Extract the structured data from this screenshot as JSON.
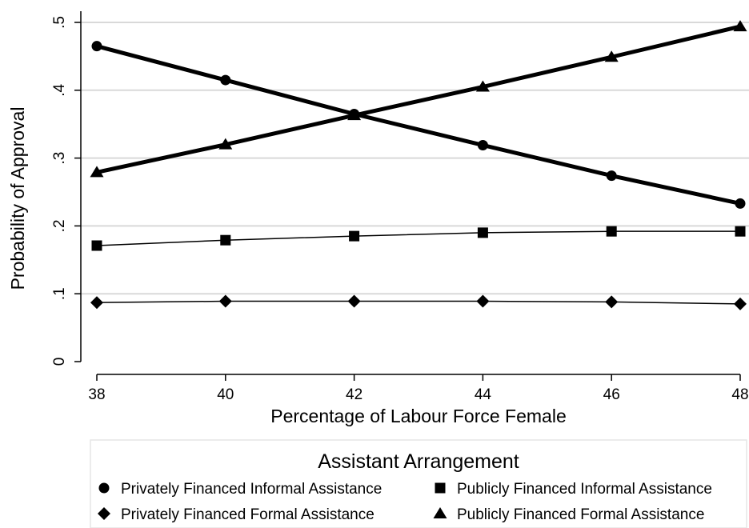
{
  "chart_data": {
    "type": "line",
    "xlabel": "Percentage of Labour Force Female",
    "ylabel": "Probability of Approval",
    "x": [
      38,
      40,
      42,
      44,
      46,
      48
    ],
    "xlim": [
      38,
      48
    ],
    "ylim": [
      0,
      0.5
    ],
    "x_ticks": [
      38,
      40,
      42,
      44,
      46,
      48
    ],
    "x_tick_labels": [
      "38",
      "40",
      "42",
      "44",
      "46",
      "48"
    ],
    "y_ticks": [
      0,
      0.1,
      0.2,
      0.3,
      0.4,
      0.5
    ],
    "y_tick_labels": [
      "0",
      ".1",
      ".2",
      ".3",
      ".4",
      ".5"
    ],
    "grid": true,
    "legend_title": "Assistant Arrangement",
    "legend_position": "bottom",
    "series": [
      {
        "name": "Privately Financed Informal Assistance",
        "marker": "circle",
        "line": "thick",
        "values": [
          0.465,
          0.415,
          0.365,
          0.319,
          0.274,
          0.233
        ]
      },
      {
        "name": "Publicly Financed Informal Assistance",
        "marker": "square",
        "line": "thin",
        "values": [
          0.171,
          0.179,
          0.185,
          0.19,
          0.192,
          0.192
        ]
      },
      {
        "name": "Privately Financed Formal Assistance",
        "marker": "diamond",
        "line": "thin",
        "values": [
          0.087,
          0.089,
          0.089,
          0.089,
          0.088,
          0.085
        ]
      },
      {
        "name": "Publicly Financed Formal Assistance",
        "marker": "triangle",
        "line": "thick",
        "values": [
          0.279,
          0.32,
          0.363,
          0.405,
          0.449,
          0.494
        ]
      }
    ],
    "colors": {
      "line": "#000000",
      "grid": "#d9d9d9",
      "legend_border": "#e6e6e6"
    }
  }
}
